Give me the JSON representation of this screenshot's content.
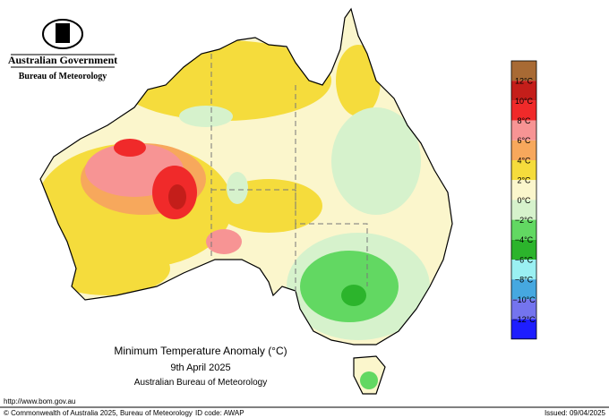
{
  "header": {
    "government": "Australian Government",
    "agency": "Bureau of Meteorology"
  },
  "legend": {
    "colors": [
      "#a86a34",
      "#c41e1a",
      "#f02a2a",
      "#f79494",
      "#f7a85c",
      "#f5dc3c",
      "#fbf6cc",
      "#d6f2cc",
      "#62d862",
      "#2cb42c",
      "#9af0f2",
      "#46a8e0",
      "#7474ee",
      "#1e1eff"
    ],
    "labels": [
      "12°C",
      "10°C",
      "8°C",
      "6°C",
      "4°C",
      "2°C",
      "0°C",
      "−2°C",
      "−4°C",
      "−6°C",
      "−8°C",
      "−10°C",
      "−12°C"
    ]
  },
  "map": {
    "title": "Minimum Temperature Anomaly (°C)",
    "date": "9th April 2025",
    "source": "Australian Bureau of Meteorology"
  },
  "footer": {
    "url": "http://www.bom.gov.au",
    "copyright": "© Commonwealth of Australia 2025, Bureau of Meteorology",
    "id_code": "ID code: AWAP",
    "issued": "Issued: 09/04/2025"
  }
}
